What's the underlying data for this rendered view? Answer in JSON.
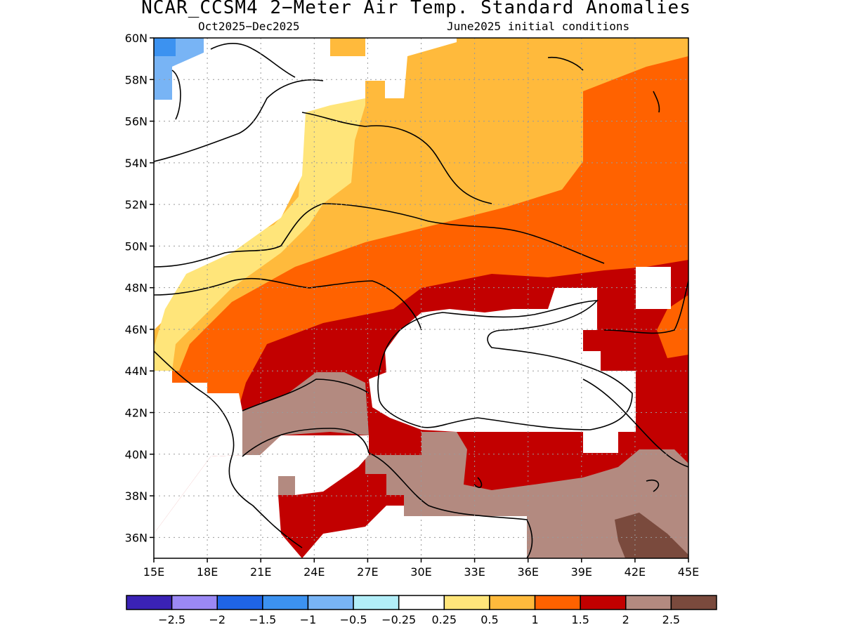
{
  "title": "NCAR_CCSM4 2−Meter Air Temp. Standard Anomalies",
  "subtitle_left": "Oct2025−Dec2025",
  "subtitle_right": "June2025 initial conditions",
  "lat_labels": [
    "60N",
    "58N",
    "56N",
    "54N",
    "52N",
    "50N",
    "48N",
    "46N",
    "44N",
    "42N",
    "40N",
    "38N",
    "36N"
  ],
  "lon_labels": [
    "15E",
    "18E",
    "21E",
    "24E",
    "27E",
    "30E",
    "33E",
    "36E",
    "39E",
    "42E",
    "45E"
  ],
  "colorbar": {
    "colors": [
      "#3a22b5",
      "#9b88f5",
      "#1f64e6",
      "#3c92f0",
      "#78b4f5",
      "#b2eef8",
      "#ffffff",
      "#ffe57a",
      "#ffba3c",
      "#ff6200",
      "#c20000",
      "#b38a80",
      "#7a4a3d"
    ],
    "labels": [
      "−2.5",
      "−2",
      "−1.5",
      "−1",
      "−0.5",
      "−0.25",
      "0.25",
      "0.5",
      "1",
      "1.5",
      "2",
      "2.5"
    ]
  },
  "colors": {
    "c050": "#ffe57a",
    "c100": "#ffba3c",
    "c150": "#ff6200",
    "c200": "#c20000",
    "c250": "#b38a80",
    "c300": "#7a4a3d",
    "cold1": "#78b4f5",
    "cold2": "#3c92f0"
  }
}
